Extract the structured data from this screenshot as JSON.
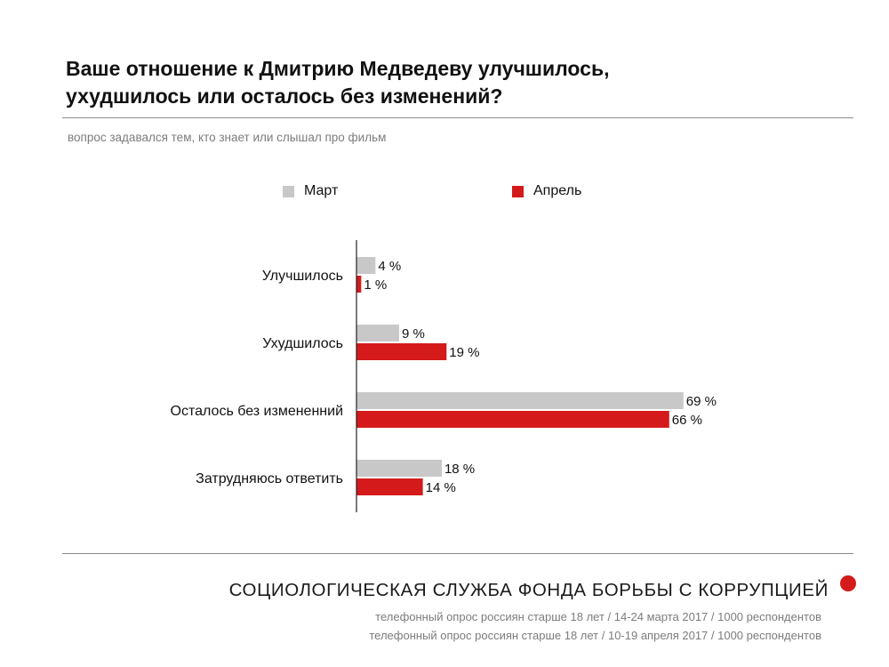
{
  "header": {
    "title_line1": "Ваше отношение к Дмитрию Медведеву улучшилось,",
    "title_line2": "ухудшилось или осталось без изменений?",
    "subtitle": "вопрос задавался тем, кто знает или слышал про фильм"
  },
  "chart_data": {
    "type": "bar",
    "orientation": "horizontal",
    "categories": [
      "Улучшилось",
      "Ухудшилось",
      "Осталось без измененний",
      "Затрудняюсь ответить"
    ],
    "series": [
      {
        "name": "Март",
        "values": [
          4,
          9,
          69,
          18
        ],
        "labels": [
          "4 %",
          "9 %",
          "69 %",
          "18 %"
        ],
        "color": "#c8c8c8"
      },
      {
        "name": "Апрель",
        "values": [
          1,
          19,
          66,
          14
        ],
        "labels": [
          "1 %",
          "19 %",
          "66 %",
          "14 %"
        ],
        "color": "#d41a1a"
      }
    ],
    "unit": "%",
    "xlim": [
      0,
      100
    ],
    "grid": false,
    "legend_position": "top"
  },
  "footer": {
    "organization": "СОЦИОЛОГИЧЕСКАЯ СЛУЖБА ФОНДА БОРЬБЫ С КОРРУПЦИЕЙ",
    "source_1": "телефонный опрос россиян старше 18 лет / 14-24 марта 2017 / 1000 респондентов",
    "source_2": "телефонный опрос россиян старше 18 лет / 10-19 апреля 2017 / 1000 респондентов",
    "dot_color": "#d41a1a"
  }
}
